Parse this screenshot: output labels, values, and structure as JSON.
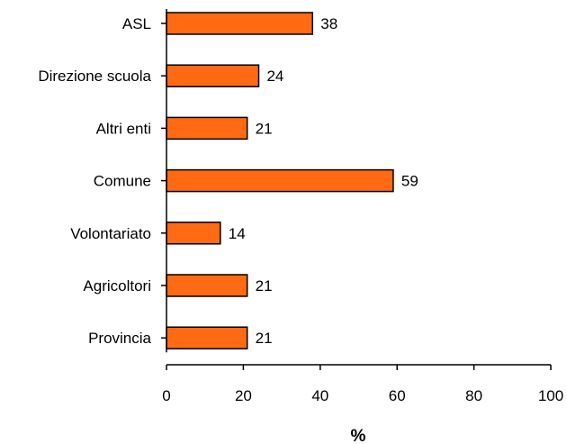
{
  "chart_data": {
    "type": "bar",
    "orientation": "horizontal",
    "categories": [
      "ASL",
      "Direzione scuola",
      "Altri enti",
      "Comune",
      "Volontariato",
      "Agricoltori",
      "Provincia"
    ],
    "values": [
      38,
      24,
      21,
      59,
      14,
      21,
      21
    ],
    "value_labels": [
      "38",
      "24",
      "21",
      "59",
      "14",
      "21",
      "21"
    ],
    "xlabel": "%",
    "xlim": [
      0,
      100
    ],
    "xticks": [
      0,
      20,
      40,
      60,
      80,
      100
    ],
    "xtick_labels": [
      "0",
      "20",
      "40",
      "60",
      "80",
      "100"
    ],
    "grid": false,
    "bar_color": "#ff6a13"
  }
}
